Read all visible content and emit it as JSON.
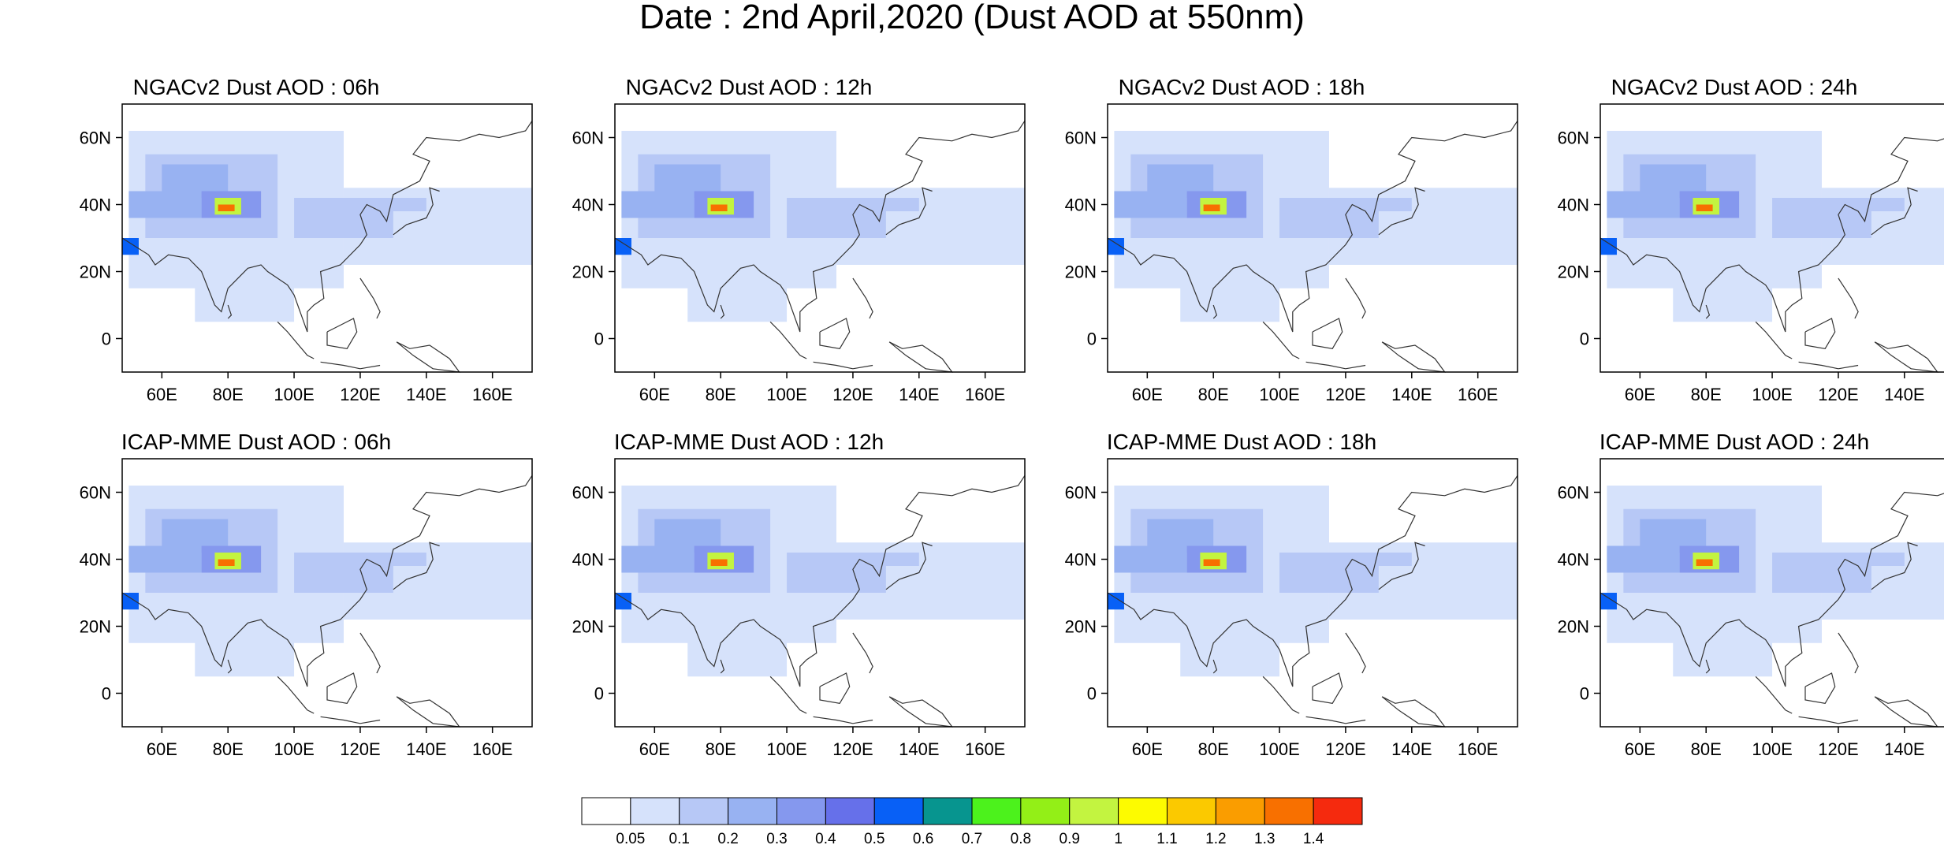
{
  "figure_title": "Date : 2nd April,2020 (Dust AOD at 550nm)",
  "map_extent": {
    "lon": [
      48,
      172
    ],
    "lat": [
      -10,
      70
    ]
  },
  "axes": {
    "x_ticks": [
      60,
      80,
      100,
      120,
      140,
      160
    ],
    "x_tick_labels": [
      "60E",
      "80E",
      "100E",
      "120E",
      "140E",
      "160E"
    ],
    "y_ticks": [
      0,
      20,
      40,
      60
    ],
    "y_tick_labels": [
      "0",
      "20N",
      "40N",
      "60N"
    ]
  },
  "panels": [
    {
      "title": "NGACv2 Dust AOD : 06h"
    },
    {
      "title": "NGACv2 Dust AOD : 12h"
    },
    {
      "title": "NGACv2 Dust AOD : 18h"
    },
    {
      "title": "NGACv2 Dust AOD : 24h"
    },
    {
      "title": "ICAP-MME Dust AOD : 06h"
    },
    {
      "title": "ICAP-MME Dust AOD : 12h"
    },
    {
      "title": "ICAP-MME Dust AOD : 18h"
    },
    {
      "title": "ICAP-MME Dust AOD : 24h"
    }
  ],
  "colorbar": {
    "levels": [
      "0.05",
      "0.1",
      "0.2",
      "0.3",
      "0.4",
      "0.5",
      "0.6",
      "0.7",
      "0.8",
      "0.9",
      "1",
      "1.1",
      "1.2",
      "1.3",
      "1.4"
    ],
    "colors": [
      "#ffffff",
      "#d6e2fb",
      "#b7c8f6",
      "#98b2f2",
      "#8598ee",
      "#6670ea",
      "#0860f6",
      "#07958f",
      "#4cf21c",
      "#93ef17",
      "#c3f440",
      "#fdfb00",
      "#fbc900",
      "#fa9d00",
      "#f87000",
      "#f52a0e"
    ]
  }
}
